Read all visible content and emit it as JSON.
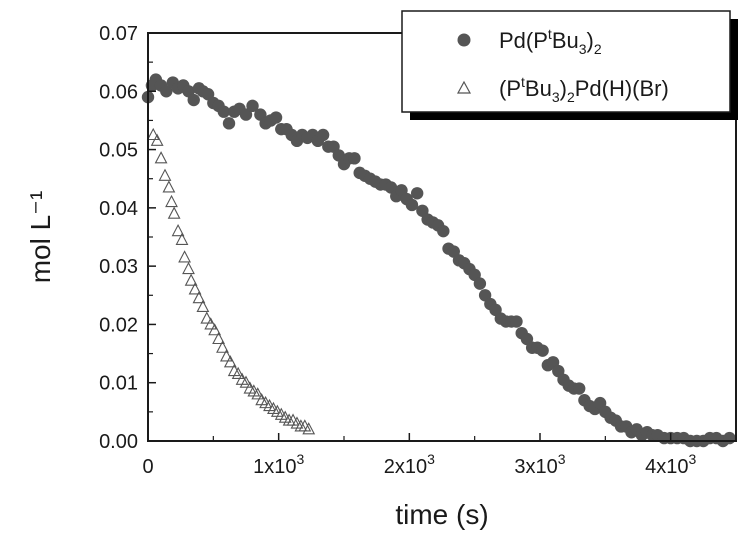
{
  "chart_data": {
    "type": "scatter",
    "xlabel": "time (s)",
    "ylabel": "mol L⁻¹",
    "xlim": [
      0,
      4500
    ],
    "ylim": [
      0,
      0.07
    ],
    "x_ticks": [
      {
        "value": 0,
        "label": "0"
      },
      {
        "value": 1000,
        "label": "1x10",
        "sup": "3"
      },
      {
        "value": 2000,
        "label": "2x10",
        "sup": "3"
      },
      {
        "value": 3000,
        "label": "3x10",
        "sup": "3"
      },
      {
        "value": 4000,
        "label": "4x10",
        "sup": "3"
      }
    ],
    "y_ticks": [
      "0.00",
      "0.01",
      "0.02",
      "0.03",
      "0.04",
      "0.05",
      "0.06",
      "0.07"
    ],
    "legend_position": "top-right",
    "series": [
      {
        "name": "Pd(PᵗBu₃)₂",
        "marker": "filled-circle",
        "color": "#555555",
        "points": [
          [
            0,
            0.059
          ],
          [
            30,
            0.061
          ],
          [
            60,
            0.062
          ],
          [
            100,
            0.061
          ],
          [
            140,
            0.06
          ],
          [
            190,
            0.0615
          ],
          [
            230,
            0.0605
          ],
          [
            270,
            0.061
          ],
          [
            310,
            0.06
          ],
          [
            350,
            0.0585
          ],
          [
            390,
            0.0605
          ],
          [
            420,
            0.06
          ],
          [
            460,
            0.0595
          ],
          [
            500,
            0.058
          ],
          [
            540,
            0.0575
          ],
          [
            580,
            0.0565
          ],
          [
            620,
            0.0545
          ],
          [
            660,
            0.0565
          ],
          [
            700,
            0.057
          ],
          [
            750,
            0.056
          ],
          [
            800,
            0.0575
          ],
          [
            860,
            0.056
          ],
          [
            900,
            0.0545
          ],
          [
            940,
            0.055
          ],
          [
            980,
            0.0555
          ],
          [
            1020,
            0.0535
          ],
          [
            1060,
            0.0535
          ],
          [
            1100,
            0.0525
          ],
          [
            1140,
            0.0515
          ],
          [
            1180,
            0.0525
          ],
          [
            1220,
            0.052
          ],
          [
            1260,
            0.0525
          ],
          [
            1300,
            0.0515
          ],
          [
            1340,
            0.0525
          ],
          [
            1380,
            0.0505
          ],
          [
            1420,
            0.0505
          ],
          [
            1460,
            0.049
          ],
          [
            1500,
            0.0475
          ],
          [
            1540,
            0.0485
          ],
          [
            1580,
            0.0485
          ],
          [
            1620,
            0.046
          ],
          [
            1660,
            0.0455
          ],
          [
            1700,
            0.045
          ],
          [
            1740,
            0.0445
          ],
          [
            1780,
            0.044
          ],
          [
            1820,
            0.044
          ],
          [
            1860,
            0.0435
          ],
          [
            1900,
            0.042
          ],
          [
            1940,
            0.043
          ],
          [
            1980,
            0.0415
          ],
          [
            2020,
            0.0405
          ],
          [
            2060,
            0.0425
          ],
          [
            2100,
            0.0395
          ],
          [
            2140,
            0.038
          ],
          [
            2180,
            0.0375
          ],
          [
            2220,
            0.037
          ],
          [
            2260,
            0.036
          ],
          [
            2300,
            0.033
          ],
          [
            2340,
            0.0325
          ],
          [
            2380,
            0.031
          ],
          [
            2420,
            0.0305
          ],
          [
            2460,
            0.0295
          ],
          [
            2500,
            0.0285
          ],
          [
            2540,
            0.027
          ],
          [
            2580,
            0.025
          ],
          [
            2620,
            0.0235
          ],
          [
            2660,
            0.0225
          ],
          [
            2700,
            0.021
          ],
          [
            2740,
            0.0205
          ],
          [
            2780,
            0.0205
          ],
          [
            2820,
            0.0205
          ],
          [
            2860,
            0.0185
          ],
          [
            2900,
            0.0175
          ],
          [
            2940,
            0.016
          ],
          [
            2980,
            0.016
          ],
          [
            3020,
            0.0155
          ],
          [
            3060,
            0.013
          ],
          [
            3100,
            0.0135
          ],
          [
            3140,
            0.012
          ],
          [
            3180,
            0.0105
          ],
          [
            3220,
            0.0095
          ],
          [
            3260,
            0.009
          ],
          [
            3300,
            0.009
          ],
          [
            3340,
            0.007
          ],
          [
            3380,
            0.006
          ],
          [
            3420,
            0.0055
          ],
          [
            3460,
            0.0065
          ],
          [
            3500,
            0.005
          ],
          [
            3540,
            0.004
          ],
          [
            3580,
            0.0035
          ],
          [
            3620,
            0.0025
          ],
          [
            3660,
            0.0025
          ],
          [
            3700,
            0.0015
          ],
          [
            3740,
            0.002
          ],
          [
            3780,
            0.001
          ],
          [
            3820,
            0.0015
          ],
          [
            3860,
            0.001
          ],
          [
            3900,
            0.001
          ],
          [
            3950,
            0.0005
          ],
          [
            4000,
            0.0005
          ],
          [
            4050,
            0.0005
          ],
          [
            4100,
            0.0005
          ],
          [
            4150,
            0.0
          ],
          [
            4200,
            0.0
          ],
          [
            4250,
            0.0
          ],
          [
            4300,
            0.0005
          ],
          [
            4350,
            0.0005
          ],
          [
            4400,
            0.0
          ],
          [
            4450,
            0.0005
          ]
        ]
      },
      {
        "name": "(PᵗBu₃)₂Pd(H)(Br)",
        "marker": "open-triangle",
        "color": "#555555",
        "points": [
          [
            40,
            0.0525
          ],
          [
            70,
            0.0515
          ],
          [
            100,
            0.0485
          ],
          [
            130,
            0.0455
          ],
          [
            160,
            0.0435
          ],
          [
            180,
            0.041
          ],
          [
            200,
            0.039
          ],
          [
            230,
            0.036
          ],
          [
            260,
            0.0345
          ],
          [
            280,
            0.0315
          ],
          [
            310,
            0.0295
          ],
          [
            330,
            0.0275
          ],
          [
            360,
            0.026
          ],
          [
            390,
            0.0245
          ],
          [
            420,
            0.023
          ],
          [
            450,
            0.021
          ],
          [
            480,
            0.02
          ],
          [
            510,
            0.019
          ],
          [
            540,
            0.0175
          ],
          [
            570,
            0.016
          ],
          [
            600,
            0.0145
          ],
          [
            630,
            0.0135
          ],
          [
            660,
            0.012
          ],
          [
            690,
            0.0115
          ],
          [
            720,
            0.0105
          ],
          [
            750,
            0.01
          ],
          [
            780,
            0.009
          ],
          [
            810,
            0.0085
          ],
          [
            840,
            0.008
          ],
          [
            870,
            0.007
          ],
          [
            900,
            0.0065
          ],
          [
            930,
            0.006
          ],
          [
            960,
            0.0055
          ],
          [
            990,
            0.005
          ],
          [
            1020,
            0.0045
          ],
          [
            1050,
            0.004
          ],
          [
            1080,
            0.0035
          ],
          [
            1110,
            0.0035
          ],
          [
            1140,
            0.003
          ],
          [
            1170,
            0.0025
          ],
          [
            1200,
            0.0025
          ],
          [
            1230,
            0.002
          ]
        ]
      }
    ]
  }
}
